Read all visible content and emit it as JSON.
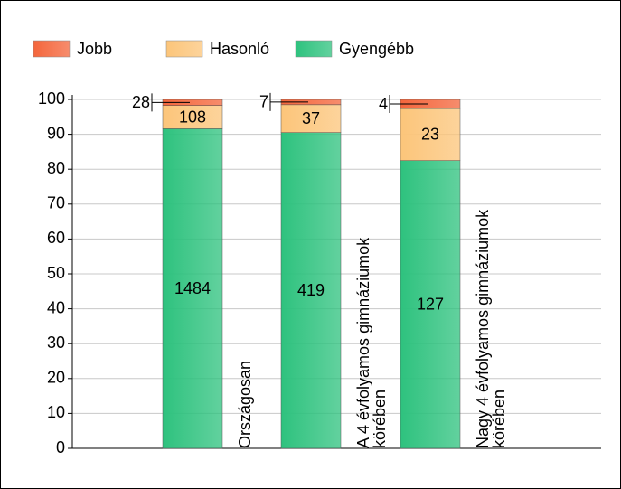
{
  "chart_data": {
    "type": "bar",
    "stacking": "percent",
    "categories": [
      "Országosan",
      "A 4 évfolyamos gimnáziumok körében",
      "Nagy 4 évfolyamos gimnáziumok körében"
    ],
    "series": [
      {
        "name": "Jobb",
        "color": "#f4663c",
        "values": [
          28,
          7,
          4
        ]
      },
      {
        "name": "Hasonló",
        "color": "#fcc57a",
        "values": [
          108,
          37,
          23
        ]
      },
      {
        "name": "Gyengébb",
        "color": "#2ec27e",
        "values": [
          1484,
          419,
          127
        ]
      }
    ],
    "ylim": [
      0,
      100
    ],
    "yticks": [
      0,
      10,
      20,
      30,
      40,
      50,
      60,
      70,
      80,
      90,
      100
    ],
    "grid": true
  }
}
